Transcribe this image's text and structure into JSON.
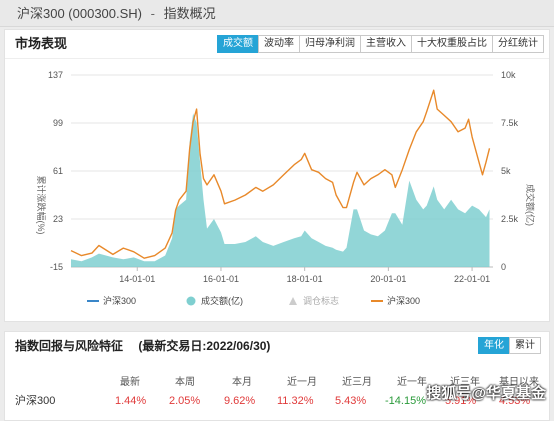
{
  "breadcrumb": {
    "index_name": "沪深300 (000300.SH)",
    "separator": "-",
    "section": "指数概况"
  },
  "market_card": {
    "title": "市场表现",
    "tabs": [
      {
        "label": "成交额",
        "active": true
      },
      {
        "label": "波动率",
        "active": false
      },
      {
        "label": "归母净利润",
        "active": false
      },
      {
        "label": "主营收入",
        "active": false
      },
      {
        "label": "十大权重股占比",
        "active": false
      },
      {
        "label": "分红统计",
        "active": false
      }
    ]
  },
  "chart_data": {
    "type": "line",
    "left_axis_label": "累计涨跌幅(%)",
    "right_axis_label": "成交额(亿)",
    "y_left_ticks": [
      "137",
      "99",
      "61",
      "23",
      "-15"
    ],
    "y_right_ticks": [
      "10k",
      "7.5k",
      "5k",
      "2.5k",
      "0"
    ],
    "x_ticks": [
      "14-01-01",
      "16-01-01",
      "18-01-01",
      "20-01-01",
      "22-01-01"
    ],
    "ylim_left": [
      -15,
      137
    ],
    "ylim_right": [
      0,
      10000
    ],
    "colors": {
      "line": "#e8892a",
      "area": "#7fcfd0",
      "grid": "#e4e4e4"
    },
    "series": [
      {
        "name": "沪深300",
        "axis": "left",
        "kind": "line",
        "x": [
          "2012-06",
          "2012-09",
          "2012-12",
          "2013-02",
          "2013-06",
          "2013-09",
          "2013-12",
          "2014-03",
          "2014-06",
          "2014-09",
          "2014-11",
          "2014-12",
          "2015-01",
          "2015-03",
          "2015-04",
          "2015-05",
          "2015-06",
          "2015-07",
          "2015-08",
          "2015-09",
          "2015-11",
          "2016-01",
          "2016-02",
          "2016-05",
          "2016-08",
          "2016-11",
          "2017-01",
          "2017-04",
          "2017-07",
          "2017-10",
          "2017-12",
          "2018-01",
          "2018-03",
          "2018-05",
          "2018-07",
          "2018-09",
          "2018-10",
          "2018-12",
          "2019-01",
          "2019-03",
          "2019-04",
          "2019-06",
          "2019-08",
          "2019-10",
          "2019-12",
          "2020-02",
          "2020-03",
          "2020-05",
          "2020-07",
          "2020-09",
          "2020-11",
          "2020-12",
          "2021-02",
          "2021-03",
          "2021-05",
          "2021-07",
          "2021-09",
          "2021-11",
          "2021-12",
          "2022-01",
          "2022-03",
          "2022-04",
          "2022-05",
          "2022-06"
        ],
        "values": [
          -2,
          -6,
          -4,
          2,
          -5,
          0,
          -3,
          -8,
          -6,
          0,
          12,
          30,
          38,
          45,
          78,
          100,
          110,
          75,
          55,
          50,
          58,
          45,
          35,
          38,
          42,
          48,
          45,
          50,
          58,
          66,
          70,
          75,
          62,
          60,
          55,
          52,
          42,
          32,
          32,
          52,
          60,
          50,
          55,
          58,
          62,
          58,
          48,
          62,
          78,
          92,
          100,
          108,
          125,
          110,
          105,
          100,
          92,
          95,
          102,
          88,
          68,
          58,
          68,
          79
        ]
      },
      {
        "name": "成交额(亿)",
        "axis": "right",
        "kind": "area",
        "x": [
          "2012-06",
          "2012-09",
          "2012-12",
          "2013-02",
          "2013-06",
          "2013-09",
          "2013-12",
          "2014-03",
          "2014-06",
          "2014-09",
          "2014-11",
          "2014-12",
          "2015-01",
          "2015-03",
          "2015-04",
          "2015-05",
          "2015-06",
          "2015-07",
          "2015-08",
          "2015-09",
          "2015-11",
          "2016-01",
          "2016-02",
          "2016-05",
          "2016-08",
          "2016-11",
          "2017-01",
          "2017-04",
          "2017-07",
          "2017-10",
          "2017-12",
          "2018-01",
          "2018-03",
          "2018-05",
          "2018-07",
          "2018-09",
          "2018-10",
          "2018-12",
          "2019-01",
          "2019-03",
          "2019-04",
          "2019-06",
          "2019-08",
          "2019-10",
          "2019-12",
          "2020-02",
          "2020-03",
          "2020-05",
          "2020-07",
          "2020-09",
          "2020-11",
          "2020-12",
          "2021-02",
          "2021-03",
          "2021-05",
          "2021-07",
          "2021-09",
          "2021-11",
          "2021-12",
          "2022-01",
          "2022-03",
          "2022-04",
          "2022-05",
          "2022-06"
        ],
        "values": [
          400,
          300,
          500,
          700,
          500,
          400,
          500,
          300,
          300,
          600,
          1500,
          3000,
          3200,
          3500,
          6500,
          8000,
          7500,
          5500,
          3500,
          2000,
          2500,
          1800,
          1200,
          1200,
          1300,
          1600,
          1300,
          1100,
          1300,
          1500,
          1600,
          1900,
          1500,
          1300,
          1100,
          1000,
          900,
          800,
          1000,
          3000,
          3000,
          1900,
          1700,
          1600,
          1900,
          2800,
          2800,
          2200,
          4500,
          3500,
          3000,
          3200,
          4200,
          3500,
          3000,
          3500,
          3000,
          2800,
          3000,
          3200,
          3000,
          2800,
          2600,
          3000
        ]
      }
    ],
    "legend": [
      {
        "label": "沪深300",
        "marker": "line",
        "color": "#3a86c8"
      },
      {
        "label": "成交额(亿)",
        "marker": "dot",
        "color": "#7fcfd0"
      },
      {
        "label": "调仓标志",
        "marker": "triangle",
        "color": "#cccccc"
      },
      {
        "label": "沪深300",
        "marker": "line",
        "color": "#e8892a"
      }
    ]
  },
  "returns_card": {
    "title": "指数回报与风险特征",
    "date_label": "(最新交易日:2022/06/30)",
    "period_tabs": [
      {
        "label": "年化",
        "active": true
      },
      {
        "label": "累计",
        "active": false
      }
    ],
    "headers": [
      "最新",
      "本周",
      "本月",
      "近一月",
      "近三月",
      "近一年",
      "近三年",
      "基日以来"
    ],
    "rows": [
      {
        "name": "沪深300",
        "values": [
          "1.44%",
          "2.05%",
          "9.62%",
          "11.32%",
          "5.43%",
          "-14.15%",
          "5.91%",
          "4.53%"
        ]
      }
    ]
  },
  "watermark": "搜狐号@华夏基金"
}
